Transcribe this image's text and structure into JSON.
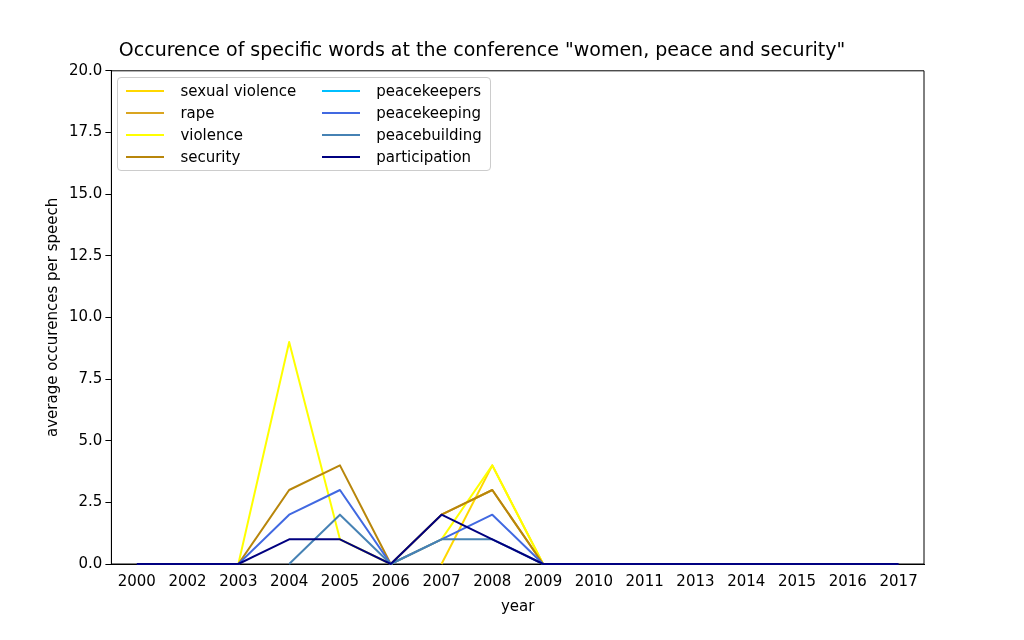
{
  "chart_data": {
    "type": "line",
    "title": "Occurence of specific words at the conference \"women, peace and security\"",
    "xlabel": "year",
    "ylabel": "average occurences per speech",
    "categories": [
      "2000",
      "2002",
      "2003",
      "2004",
      "2005",
      "2006",
      "2007",
      "2008",
      "2009",
      "2010",
      "2011",
      "2013",
      "2014",
      "2015",
      "2016",
      "2017"
    ],
    "series": [
      {
        "name": "sexual violence",
        "color": "#ffd700",
        "values": [
          null,
          null,
          null,
          null,
          null,
          null,
          0,
          4,
          0,
          null,
          null,
          null,
          null,
          null,
          null,
          null
        ]
      },
      {
        "name": "rape",
        "color": "#daa520",
        "values": [
          null,
          null,
          null,
          null,
          null,
          null,
          2,
          3,
          0,
          null,
          null,
          null,
          null,
          null,
          null,
          null
        ]
      },
      {
        "name": "violence",
        "color": "#ffff00",
        "values": [
          null,
          null,
          0,
          9,
          1,
          0,
          1,
          4,
          0,
          null,
          null,
          null,
          null,
          null,
          null,
          null
        ]
      },
      {
        "name": "security",
        "color": "#b8860b",
        "values": [
          null,
          null,
          0,
          3,
          4,
          0,
          2,
          3,
          0,
          null,
          null,
          null,
          null,
          null,
          null,
          null
        ]
      },
      {
        "name": "peacekeepers",
        "color": "#00bfff",
        "values": [
          null,
          null,
          null,
          null,
          null,
          null,
          null,
          null,
          null,
          null,
          null,
          null,
          null,
          null,
          null,
          null
        ]
      },
      {
        "name": "peacekeeping",
        "color": "#4169e1",
        "values": [
          null,
          null,
          0,
          2,
          3,
          0,
          1,
          2,
          0,
          null,
          null,
          null,
          null,
          null,
          null,
          null
        ]
      },
      {
        "name": "peacebuilding",
        "color": "#4682b4",
        "values": [
          null,
          null,
          null,
          0,
          2,
          0,
          1,
          1,
          0,
          null,
          null,
          null,
          null,
          null,
          null,
          null
        ]
      },
      {
        "name": "participation",
        "color": "#000080",
        "values": [
          0,
          0,
          0,
          1,
          1,
          0,
          2,
          1,
          0,
          0,
          0,
          0,
          0,
          0,
          0,
          0
        ]
      }
    ],
    "ylim": [
      0,
      20
    ],
    "yticks": [
      {
        "value": 0,
        "label": "0.0"
      },
      {
        "value": 2.5,
        "label": "2.5"
      },
      {
        "value": 5,
        "label": "5.0"
      },
      {
        "value": 7.5,
        "label": "7.5"
      },
      {
        "value": 10,
        "label": "10.0"
      },
      {
        "value": 12.5,
        "label": "12.5"
      },
      {
        "value": 15,
        "label": "15.0"
      },
      {
        "value": 17.5,
        "label": "17.5"
      },
      {
        "value": 20,
        "label": "20.0"
      }
    ],
    "grid": false,
    "legend": "top left",
    "marker": "none",
    "line_style": "solid"
  }
}
